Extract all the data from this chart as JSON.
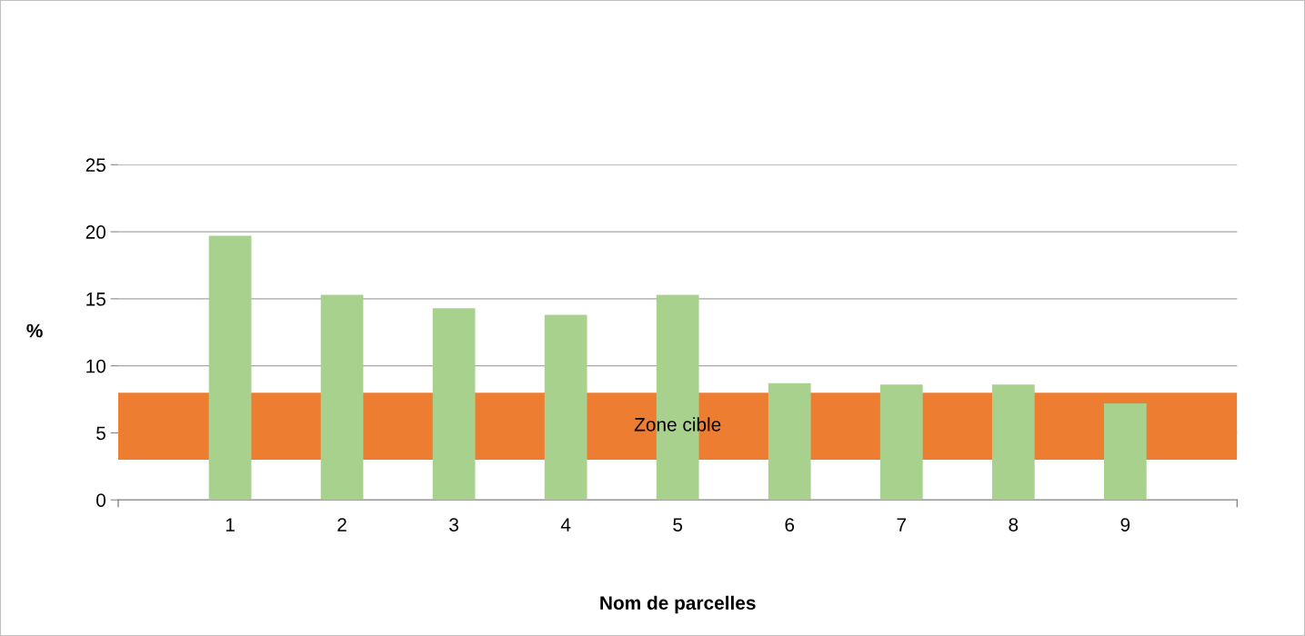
{
  "chart_data": {
    "type": "bar",
    "xlabel": "Nom de parcelles",
    "ylabel": "%",
    "categories": [
      "1",
      "2",
      "3",
      "4",
      "5",
      "6",
      "7",
      "8",
      "9"
    ],
    "values": [
      19.7,
      15.3,
      14.3,
      13.8,
      15.3,
      8.7,
      8.6,
      8.6,
      7.2
    ],
    "color": "#a9d18e",
    "ylim": [
      0,
      25
    ],
    "yticks": [
      0,
      5,
      10,
      15,
      20,
      25
    ],
    "grid": "y",
    "bands": [
      {
        "axis": "y",
        "from": 3,
        "to": 8,
        "label": "Zone cible",
        "color": "#ed7d31"
      }
    ]
  }
}
